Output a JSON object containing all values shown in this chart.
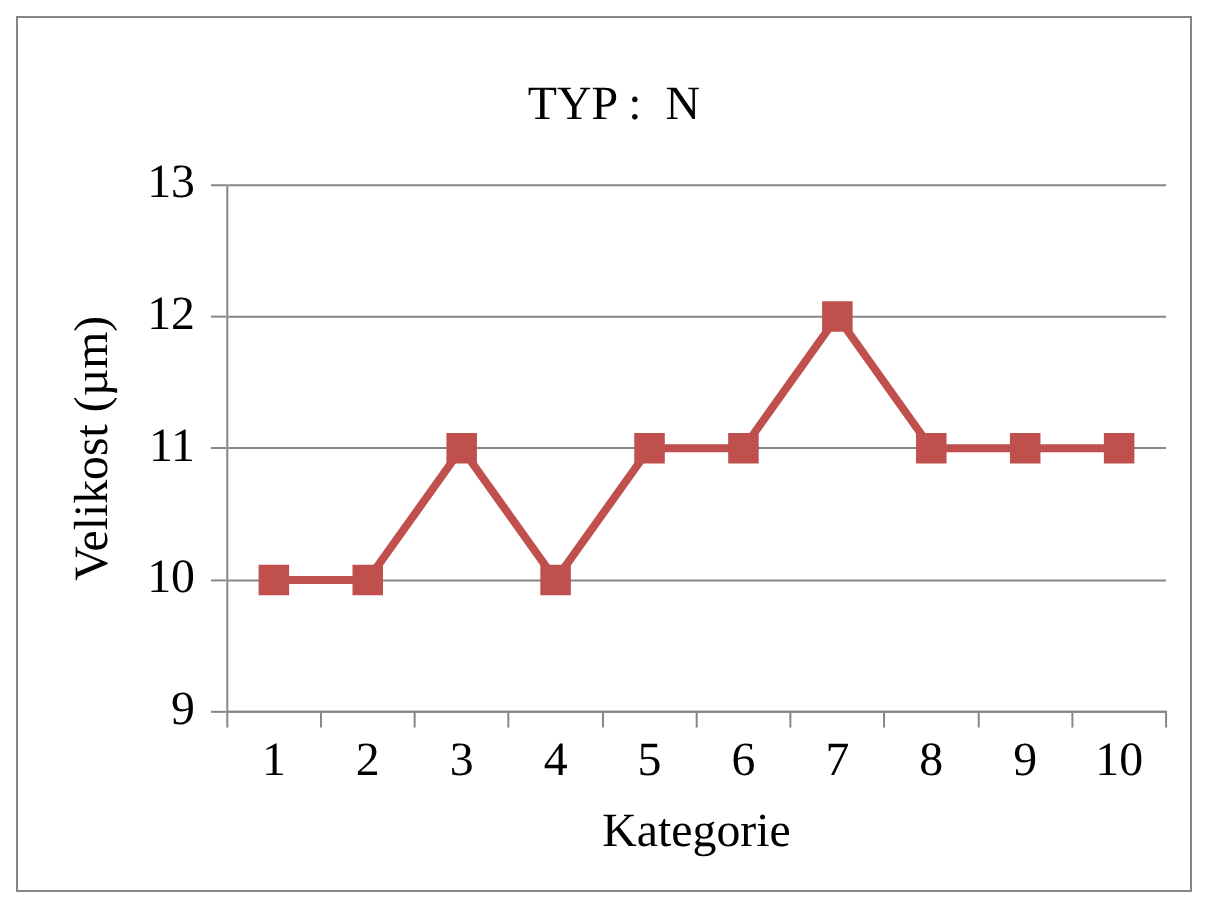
{
  "chart_data": {
    "type": "line",
    "title": "TYP :  N",
    "xlabel": "Kategorie",
    "ylabel": "Velikost (µm)",
    "categories": [
      "1",
      "2",
      "3",
      "4",
      "5",
      "6",
      "7",
      "8",
      "9",
      "10"
    ],
    "series": [
      {
        "color": "#c0504d",
        "values": [
          10,
          10,
          11,
          10,
          11,
          11,
          12,
          11,
          11,
          11
        ]
      }
    ],
    "ylim": [
      9,
      13
    ],
    "yticks": [
      9,
      10,
      11,
      12,
      13
    ],
    "grid": "y",
    "legend": false,
    "marker": "square",
    "line_style": "solid"
  }
}
